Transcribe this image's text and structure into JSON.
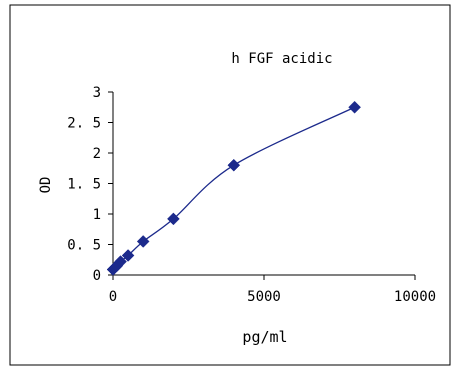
{
  "chart_data": {
    "type": "line",
    "title": "h FGF acidic",
    "xlabel": "pg/ml",
    "ylabel": "OD",
    "xlim": [
      0,
      10000
    ],
    "ylim": [
      0,
      3
    ],
    "x_ticks": [
      "0",
      "5000",
      "10000"
    ],
    "y_ticks": [
      "0",
      "0. 5",
      "1",
      "1. 5",
      "2",
      "2. 5",
      "3"
    ],
    "grid": false,
    "legend": "none",
    "series": [
      {
        "x": [
          0,
          62.5,
          125,
          250,
          500,
          1000,
          2000,
          4000,
          8000
        ],
        "y": [
          0.09,
          0.12,
          0.15,
          0.22,
          0.32,
          0.55,
          0.92,
          1.8,
          2.75
        ],
        "marker": "diamond",
        "color": "#1c2a8c"
      }
    ]
  }
}
